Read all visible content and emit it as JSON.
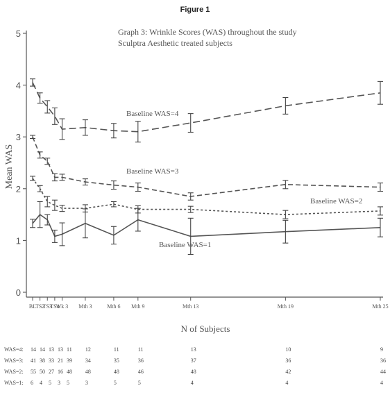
{
  "figure_label": "Figure 1",
  "chart_data": {
    "type": "line",
    "title_lines": [
      "Graph 3: Wrinkle Scores (WAS) throughout the study",
      "Sculptra Aesthetic treated subjects"
    ],
    "xlabel": "",
    "ylabel": "Mean WAS",
    "ylim": [
      0,
      5
    ],
    "yticks": [
      0,
      1,
      2,
      3,
      4,
      5
    ],
    "categories": [
      "BL",
      "TS2",
      "TS3",
      "TS4",
      "Wk 3",
      "Mth 3",
      "Mth 6",
      "Mth 9",
      "Mth 13",
      "Mth 19",
      "Mth 25"
    ],
    "x_months": [
      0,
      0.7,
      1.4,
      2.1,
      2.8,
      5,
      7.7,
      10,
      15,
      24,
      33
    ],
    "grid": false,
    "series": [
      {
        "name": "Baseline WAS=4",
        "style": "long-dash",
        "values": [
          4.05,
          3.75,
          3.58,
          3.4,
          3.15,
          3.18,
          3.12,
          3.1,
          3.27,
          3.6,
          3.85
        ],
        "errors": [
          0.07,
          0.1,
          0.12,
          0.16,
          0.2,
          0.15,
          0.14,
          0.2,
          0.18,
          0.16,
          0.22
        ]
      },
      {
        "name": "Baseline WAS=3",
        "style": "medium-dash",
        "values": [
          3.0,
          2.65,
          2.53,
          2.22,
          2.22,
          2.13,
          2.07,
          2.03,
          1.85,
          2.08,
          2.03
        ],
        "errors": [
          0.03,
          0.06,
          0.06,
          0.07,
          0.06,
          0.06,
          0.08,
          0.08,
          0.07,
          0.08,
          0.08
        ]
      },
      {
        "name": "Baseline WAS=2",
        "style": "short-dash",
        "values": [
          2.2,
          2.0,
          1.75,
          1.68,
          1.62,
          1.62,
          1.7,
          1.6,
          1.6,
          1.5,
          1.57
        ],
        "errors": [
          0.04,
          0.06,
          0.1,
          0.1,
          0.06,
          0.07,
          0.05,
          0.07,
          0.06,
          0.08,
          0.08
        ]
      },
      {
        "name": "Baseline WAS=1",
        "style": "solid",
        "values": [
          1.33,
          1.5,
          1.4,
          1.08,
          1.12,
          1.33,
          1.1,
          1.4,
          1.08,
          1.17,
          1.25
        ],
        "errors": [
          0.08,
          0.25,
          0.1,
          0.12,
          0.22,
          0.28,
          0.17,
          0.22,
          0.35,
          0.22,
          0.18
        ]
      }
    ],
    "subjects_table": {
      "title": "N of Subjects",
      "rows": [
        {
          "label": "WAS=4:",
          "counts": [
            "14",
            "14",
            "13",
            "13",
            "11",
            "12",
            "11",
            "11",
            "13",
            "10",
            "9"
          ]
        },
        {
          "label": "WAS=3:",
          "counts": [
            "41",
            "38",
            "33",
            "21",
            "39",
            "34",
            "35",
            "36",
            "37",
            "36",
            "36"
          ]
        },
        {
          "label": "WAS=2:",
          "counts": [
            "55",
            "50",
            "27",
            "16",
            "48",
            "48",
            "48",
            "46",
            "48",
            "42",
            "44"
          ]
        },
        {
          "label": "WAS=1:",
          "counts": [
            "6",
            "4",
            "5",
            "3",
            "5",
            "3",
            "5",
            "5",
            "4",
            "4",
            "4"
          ]
        }
      ]
    }
  }
}
